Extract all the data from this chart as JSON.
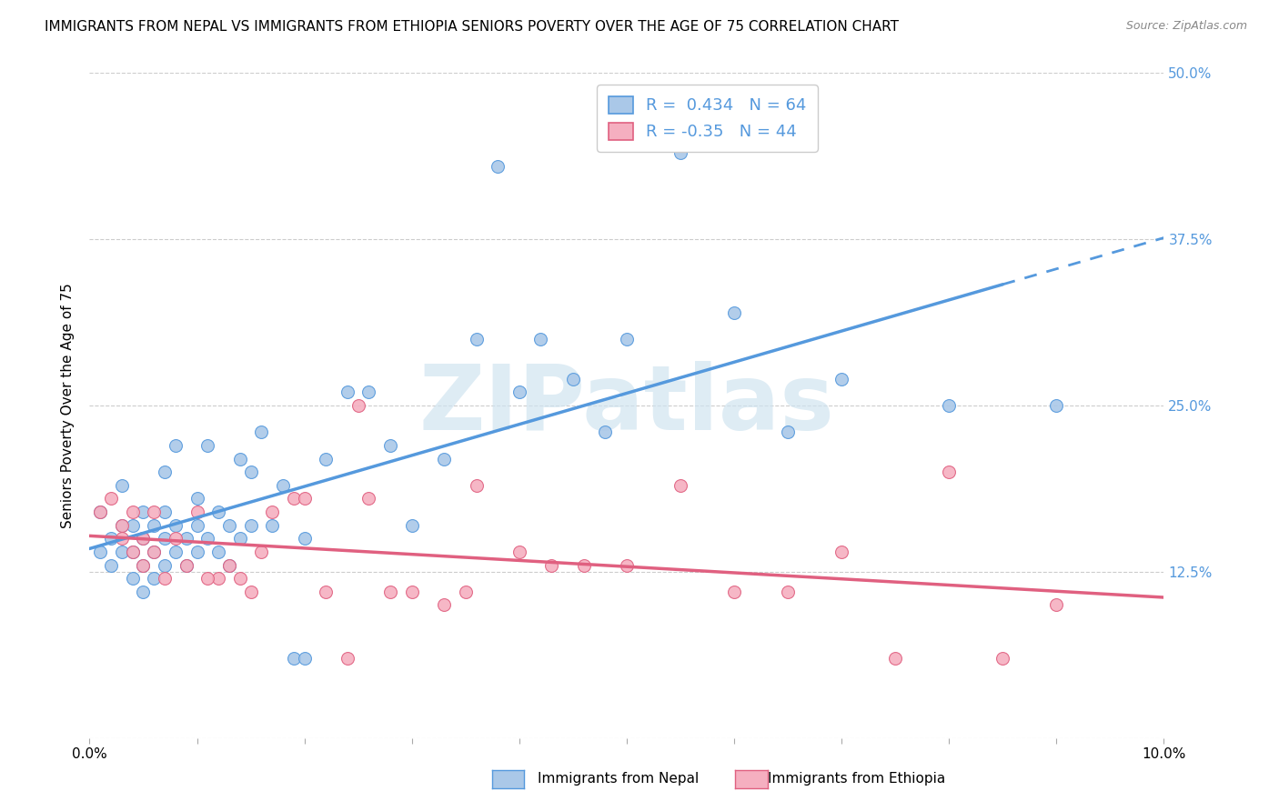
{
  "title": "IMMIGRANTS FROM NEPAL VS IMMIGRANTS FROM ETHIOPIA SENIORS POVERTY OVER THE AGE OF 75 CORRELATION CHART",
  "source": "Source: ZipAtlas.com",
  "ylabel": "Seniors Poverty Over the Age of 75",
  "xlabel_nepal": "Immigrants from Nepal",
  "xlabel_ethiopia": "Immigrants from Ethiopia",
  "nepal_R": 0.434,
  "nepal_N": 64,
  "ethiopia_R": -0.35,
  "ethiopia_N": 44,
  "xlim": [
    0.0,
    0.1
  ],
  "ylim": [
    0.0,
    0.5
  ],
  "xticks": [
    0.0,
    0.01,
    0.02,
    0.03,
    0.04,
    0.05,
    0.06,
    0.07,
    0.08,
    0.09,
    0.1
  ],
  "xtick_labels_show": {
    "0.0": "0.0%",
    "0.10": "10.0%"
  },
  "yticks": [
    0.0,
    0.125,
    0.25,
    0.375,
    0.5
  ],
  "ytick_labels_right": [
    "",
    "12.5%",
    "25.0%",
    "37.5%",
    "50.0%"
  ],
  "nepal_color": "#aac8e8",
  "ethiopia_color": "#f5afc0",
  "nepal_line_color": "#5599dd",
  "ethiopia_line_color": "#e06080",
  "nepal_scatter_x": [
    0.001,
    0.001,
    0.002,
    0.002,
    0.003,
    0.003,
    0.003,
    0.004,
    0.004,
    0.004,
    0.005,
    0.005,
    0.005,
    0.005,
    0.006,
    0.006,
    0.006,
    0.007,
    0.007,
    0.007,
    0.007,
    0.008,
    0.008,
    0.008,
    0.009,
    0.009,
    0.01,
    0.01,
    0.01,
    0.011,
    0.011,
    0.012,
    0.012,
    0.013,
    0.013,
    0.014,
    0.014,
    0.015,
    0.015,
    0.016,
    0.017,
    0.018,
    0.019,
    0.02,
    0.02,
    0.022,
    0.024,
    0.026,
    0.028,
    0.03,
    0.033,
    0.036,
    0.038,
    0.04,
    0.042,
    0.045,
    0.048,
    0.05,
    0.055,
    0.06,
    0.065,
    0.07,
    0.08,
    0.09
  ],
  "nepal_scatter_y": [
    0.17,
    0.14,
    0.15,
    0.13,
    0.16,
    0.14,
    0.19,
    0.14,
    0.12,
    0.16,
    0.13,
    0.15,
    0.11,
    0.17,
    0.14,
    0.16,
    0.12,
    0.2,
    0.15,
    0.13,
    0.17,
    0.14,
    0.16,
    0.22,
    0.15,
    0.13,
    0.16,
    0.14,
    0.18,
    0.22,
    0.15,
    0.17,
    0.14,
    0.16,
    0.13,
    0.21,
    0.15,
    0.16,
    0.2,
    0.23,
    0.16,
    0.19,
    0.06,
    0.15,
    0.06,
    0.21,
    0.26,
    0.26,
    0.22,
    0.16,
    0.21,
    0.3,
    0.43,
    0.26,
    0.3,
    0.27,
    0.23,
    0.3,
    0.44,
    0.32,
    0.23,
    0.27,
    0.25,
    0.25
  ],
  "ethiopia_scatter_x": [
    0.001,
    0.002,
    0.003,
    0.003,
    0.004,
    0.004,
    0.005,
    0.005,
    0.006,
    0.006,
    0.007,
    0.008,
    0.009,
    0.01,
    0.012,
    0.013,
    0.014,
    0.015,
    0.017,
    0.019,
    0.02,
    0.022,
    0.024,
    0.026,
    0.028,
    0.03,
    0.033,
    0.036,
    0.04,
    0.043,
    0.046,
    0.05,
    0.055,
    0.06,
    0.065,
    0.07,
    0.075,
    0.08,
    0.085,
    0.09,
    0.025,
    0.035,
    0.016,
    0.011
  ],
  "ethiopia_scatter_y": [
    0.17,
    0.18,
    0.16,
    0.15,
    0.14,
    0.17,
    0.15,
    0.13,
    0.17,
    0.14,
    0.12,
    0.15,
    0.13,
    0.17,
    0.12,
    0.13,
    0.12,
    0.11,
    0.17,
    0.18,
    0.18,
    0.11,
    0.06,
    0.18,
    0.11,
    0.11,
    0.1,
    0.19,
    0.14,
    0.13,
    0.13,
    0.13,
    0.19,
    0.11,
    0.11,
    0.14,
    0.06,
    0.2,
    0.06,
    0.1,
    0.25,
    0.11,
    0.14,
    0.12
  ],
  "background_color": "#ffffff",
  "grid_color": "#cccccc",
  "title_fontsize": 11,
  "axis_label_fontsize": 11,
  "tick_fontsize": 11,
  "legend_fontsize": 13,
  "watermark": "ZIPatlas",
  "watermark_color": "#d0e4f0",
  "watermark_fontsize": 72
}
